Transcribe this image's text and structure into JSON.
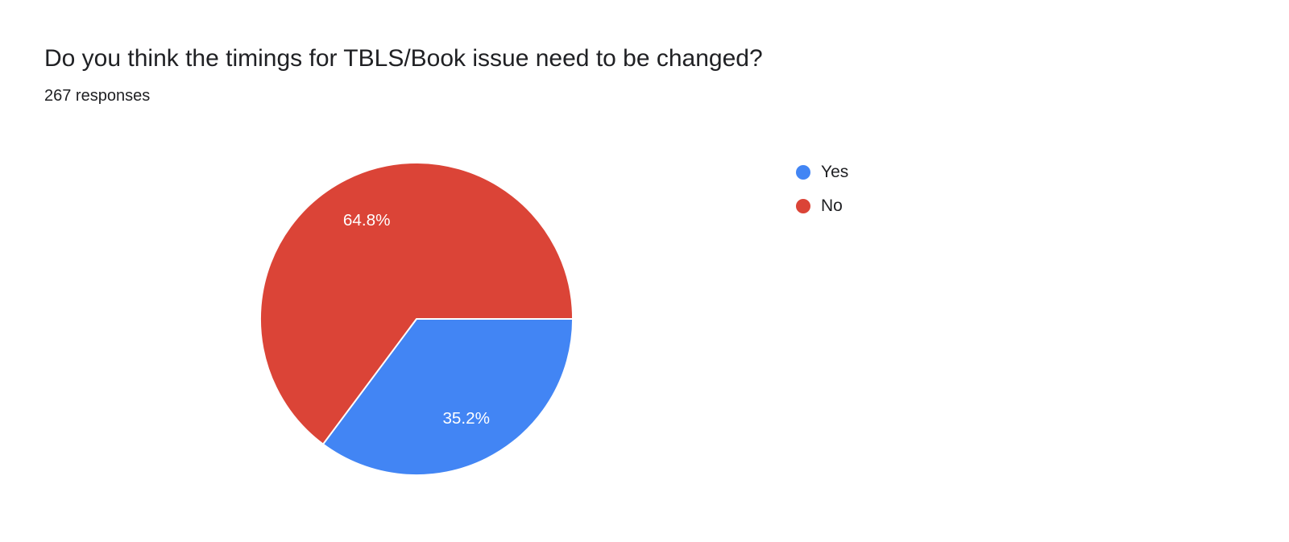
{
  "page": {
    "background": "#ffffff"
  },
  "header": {
    "title": "Do you think the timings for TBLS/Book issue need to be changed?",
    "responses": "267 responses"
  },
  "chart_data": {
    "type": "pie",
    "title": "Do you think the timings for TBLS/Book issue need to be changed?",
    "subtitle": "267 responses",
    "responses_count": 267,
    "start_angle_deg": 90,
    "direction": "clockwise",
    "legend_position": "right",
    "label_color": "#ffffff",
    "slice_border_color": "#ffffff",
    "slices": [
      {
        "label": "Yes",
        "value": 35.2,
        "pct_label": "35.2%",
        "color": "#4285f4"
      },
      {
        "label": "No",
        "value": 64.8,
        "pct_label": "64.8%",
        "color": "#db4437"
      }
    ]
  }
}
